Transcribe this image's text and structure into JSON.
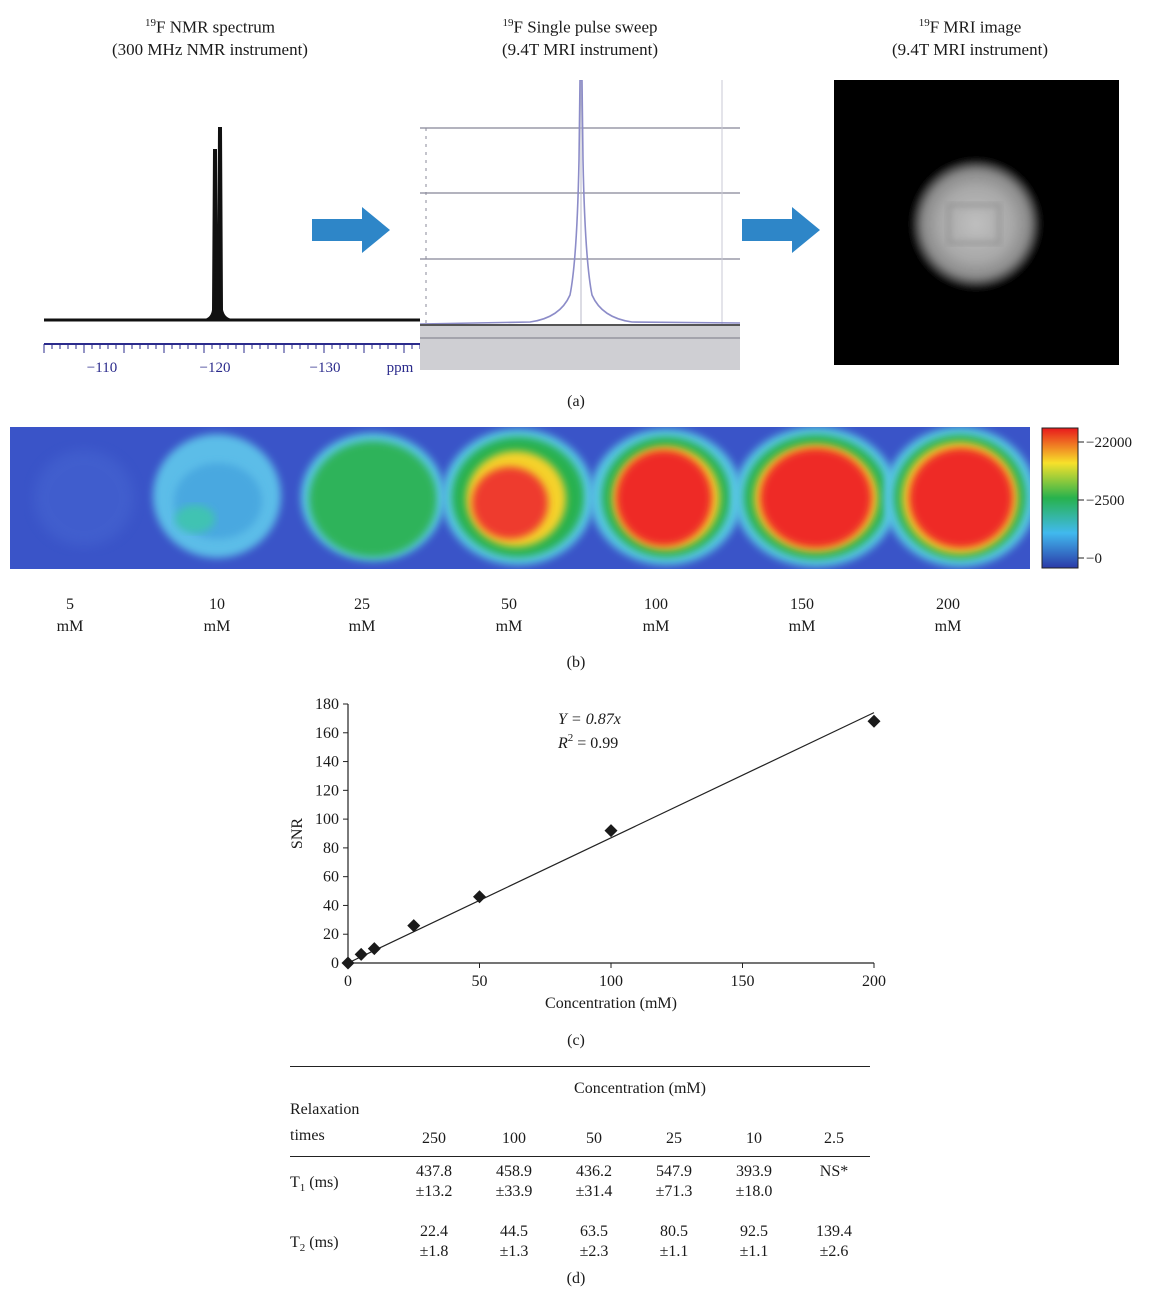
{
  "panel_a": {
    "nmr": {
      "title_sup": "19",
      "title_main": "F NMR spectrum",
      "subtitle": "(300 MHz NMR instrument)",
      "ticks": [
        "−110",
        "−120",
        "−130"
      ],
      "unit": "ppm"
    },
    "sweep": {
      "title_sup": "19",
      "title_main": "F Single pulse sweep",
      "subtitle": "(9.4T MRI instrument)"
    },
    "mri": {
      "title_sup": "19",
      "title_main": "F MRI image",
      "subtitle": "(9.4T MRI instrument)"
    },
    "caption": "(a)"
  },
  "panel_b": {
    "colorbar_labels": [
      "−22000",
      "−2500",
      "−0"
    ],
    "concentrations": [
      {
        "value": "5",
        "unit": "mM"
      },
      {
        "value": "10",
        "unit": "mM"
      },
      {
        "value": "25",
        "unit": "mM"
      },
      {
        "value": "50",
        "unit": "mM"
      },
      {
        "value": "100",
        "unit": "mM"
      },
      {
        "value": "150",
        "unit": "mM"
      },
      {
        "value": "200",
        "unit": "mM"
      }
    ],
    "caption": "(b)"
  },
  "panel_c": {
    "caption": "(c)",
    "equation": "Y = 0.87x",
    "r2_prefix": "R",
    "r2_sup": "2",
    "r2_suffix": " = 0.99"
  },
  "chart_data": {
    "type": "scatter",
    "xlabel": "Concentration (mM)",
    "ylabel": "SNR",
    "xlim": [
      0,
      200
    ],
    "ylim": [
      0,
      180
    ],
    "xticks": [
      0,
      50,
      100,
      150,
      200
    ],
    "yticks": [
      0,
      20,
      40,
      60,
      80,
      100,
      120,
      140,
      160,
      180
    ],
    "points": [
      {
        "x": 0,
        "y": 0
      },
      {
        "x": 5,
        "y": 6
      },
      {
        "x": 10,
        "y": 10
      },
      {
        "x": 25,
        "y": 26
      },
      {
        "x": 50,
        "y": 46
      },
      {
        "x": 100,
        "y": 92
      },
      {
        "x": 200,
        "y": 168
      }
    ],
    "fit": {
      "slope": 0.87,
      "x_range": [
        0,
        200
      ]
    },
    "marker": "diamond",
    "grid": false
  },
  "panel_d": {
    "caption": "(d)",
    "header_left_1": "Relaxation",
    "header_left_2": "times",
    "header_group": "Concentration (mM)",
    "columns": [
      "250",
      "100",
      "50",
      "25",
      "10",
      "2.5"
    ],
    "rows": [
      {
        "label_main": "T",
        "label_sub": "1",
        "label_unit": " (ms)",
        "values": [
          {
            "mean": "437.8",
            "sd": "±13.2"
          },
          {
            "mean": "458.9",
            "sd": "±33.9"
          },
          {
            "mean": "436.2",
            "sd": "±31.4"
          },
          {
            "mean": "547.9",
            "sd": "±71.3"
          },
          {
            "mean": "393.9",
            "sd": "±18.0"
          },
          {
            "mean": "NS*",
            "sd": ""
          }
        ]
      },
      {
        "label_main": "T",
        "label_sub": "2",
        "label_unit": " (ms)",
        "values": [
          {
            "mean": "22.4",
            "sd": "±1.8"
          },
          {
            "mean": "44.5",
            "sd": "±1.3"
          },
          {
            "mean": "63.5",
            "sd": "±2.3"
          },
          {
            "mean": "80.5",
            "sd": "±1.1"
          },
          {
            "mean": "92.5",
            "sd": "±1.1"
          },
          {
            "mean": "139.4",
            "sd": "±2.6"
          }
        ]
      }
    ]
  },
  "colors": {
    "arrow": "#2e86c8",
    "map_background": "#3a54c8",
    "nmr_tick": "#2b2b8c"
  }
}
